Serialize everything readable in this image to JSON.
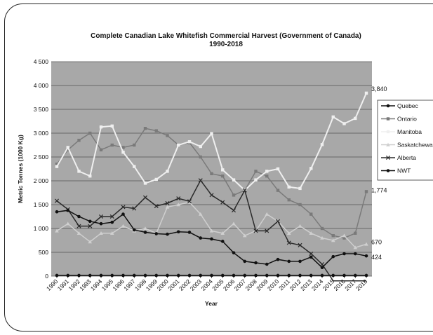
{
  "chart_data": {
    "type": "line",
    "title": "Complete Canadian Lake Whitefish Commercial Harvest (Government of Canada)",
    "subtitle": "1990-2018",
    "xlabel": "Year",
    "ylabel": "Metric Tonnes (1000 Kg)",
    "ylim": [
      0,
      4500
    ],
    "yticks": [
      "0",
      "500",
      "1 000",
      "1 500",
      "2 000",
      "2 500",
      "3 000",
      "3 500",
      "4 000",
      "4 500"
    ],
    "x": [
      "1990",
      "1991",
      "1992",
      "1993",
      "1994",
      "1995",
      "1996",
      "1997",
      "1998",
      "1999",
      "2000",
      "2001",
      "2002",
      "2003",
      "2004",
      "2005",
      "2006",
      "2007",
      "2008",
      "2009",
      "2010",
      "2011",
      "2012",
      "2013",
      "2014",
      "2015",
      "2016",
      "2017",
      "2018"
    ],
    "grid": true,
    "legend_position": "right",
    "series": [
      {
        "name": "Quebec",
        "color": "#111111",
        "values": [
          15,
          15,
          15,
          15,
          15,
          15,
          15,
          15,
          15,
          15,
          15,
          15,
          15,
          15,
          15,
          15,
          15,
          15,
          15,
          15,
          15,
          15,
          15,
          15,
          15,
          15,
          15,
          15,
          15
        ]
      },
      {
        "name": "Ontario",
        "color": "#7a7a7a",
        "values": [
          2350,
          2650,
          2850,
          3000,
          2650,
          2750,
          2700,
          2750,
          3100,
          3050,
          2950,
          2750,
          2800,
          2500,
          2150,
          2100,
          1700,
          1800,
          2200,
          2100,
          1800,
          1600,
          1500,
          1300,
          1000,
          850,
          800,
          900,
          1774
        ]
      },
      {
        "name": "Manitoba",
        "color": "#efefef",
        "values": [
          2300,
          2700,
          2200,
          2100,
          3130,
          3150,
          2600,
          2300,
          1950,
          2030,
          2200,
          2750,
          2820,
          2720,
          2990,
          2230,
          2020,
          1800,
          2020,
          2200,
          2250,
          1870,
          1840,
          2260,
          2760,
          3340,
          3200,
          3310,
          3840
        ]
      },
      {
        "name": "Saskatchewan",
        "color": "#cfcfcf",
        "values": [
          950,
          1100,
          900,
          720,
          900,
          900,
          1050,
          950,
          1000,
          900,
          1450,
          1500,
          1550,
          1300,
          950,
          900,
          1100,
          850,
          950,
          1300,
          1150,
          900,
          1050,
          900,
          800,
          750,
          850,
          600,
          670
        ]
      },
      {
        "name": "Alberta",
        "color": "#2a2a2a",
        "values": [
          1580,
          1400,
          1050,
          1050,
          1250,
          1250,
          1450,
          1420,
          1650,
          1470,
          1530,
          1630,
          1570,
          2010,
          1700,
          1550,
          1380,
          1800,
          950,
          950,
          1150,
          700,
          650,
          470,
          250,
          -100,
          -100,
          -100,
          -100
        ]
      },
      {
        "name": "NWT",
        "color": "#111111",
        "values": [
          1350,
          1380,
          1250,
          1150,
          1100,
          1130,
          1300,
          970,
          920,
          890,
          880,
          930,
          920,
          800,
          780,
          730,
          490,
          310,
          280,
          250,
          350,
          310,
          310,
          400,
          180,
          410,
          470,
          470,
          424
        ]
      }
    ],
    "annotations": [
      "3,840",
      "1,774",
      "670",
      "424"
    ]
  }
}
